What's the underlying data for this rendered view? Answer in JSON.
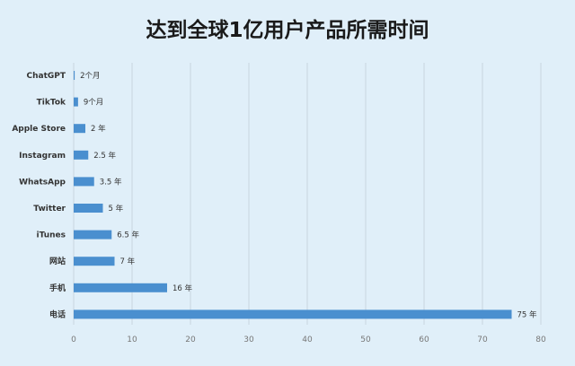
{
  "chart_data": {
    "type": "bar",
    "orientation": "horizontal",
    "title": "达到全球1亿用户产品所需时间",
    "categories": [
      "ChatGPT",
      "TikTok",
      "Apple Store",
      "Instagram",
      "WhatsApp",
      "Twitter",
      "iTunes",
      "网站",
      "手机",
      "电话"
    ],
    "values": [
      0.17,
      0.75,
      2,
      2.5,
      3.5,
      5,
      6.5,
      7,
      16,
      75
    ],
    "data_labels": [
      "2个月",
      "9个月",
      "2 年",
      "2.5 年",
      "3.5 年",
      "5 年",
      "6.5 年",
      "7 年",
      "16 年",
      "75 年"
    ],
    "xlim": [
      0,
      80
    ],
    "xticks": [
      "0",
      "10",
      "20",
      "30",
      "40",
      "50",
      "60",
      "70",
      "80"
    ],
    "unit": "年",
    "grid": true,
    "bar_color": "#4a8fcf"
  }
}
